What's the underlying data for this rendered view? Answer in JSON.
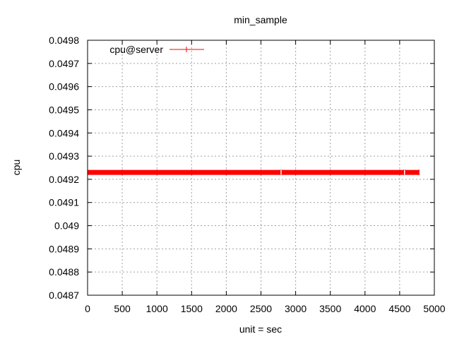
{
  "chart_data": {
    "type": "line",
    "title": "min_sample",
    "xlabel": "unit = sec",
    "ylabel": "cpu",
    "xlim": [
      0,
      5000
    ],
    "ylim": [
      0.0487,
      0.0498
    ],
    "x_ticks": [
      "0",
      "500",
      "1000",
      "1500",
      "2000",
      "2500",
      "3000",
      "3500",
      "4000",
      "4500",
      "5000"
    ],
    "y_ticks": [
      "0.0487",
      "0.0488",
      "0.0489",
      "0.049",
      "0.0491",
      "0.0492",
      "0.0493",
      "0.0494",
      "0.0495",
      "0.0496",
      "0.0497",
      "0.0498"
    ],
    "grid": true,
    "legend_position": "top-left",
    "series": [
      {
        "name": "cpu@server",
        "color": "#ff0000",
        "marker": "plus",
        "x": [
          0,
          500,
          1000,
          1500,
          2000,
          2500,
          2780,
          2800,
          3000,
          3500,
          4000,
          4500,
          4560,
          4580,
          4780
        ],
        "y": [
          0.04923,
          0.04923,
          0.04923,
          0.04923,
          0.04923,
          0.04923,
          0.04923,
          0.04923,
          0.04923,
          0.04923,
          0.04923,
          0.04923,
          0.04923,
          0.04923,
          0.04923
        ]
      }
    ]
  }
}
